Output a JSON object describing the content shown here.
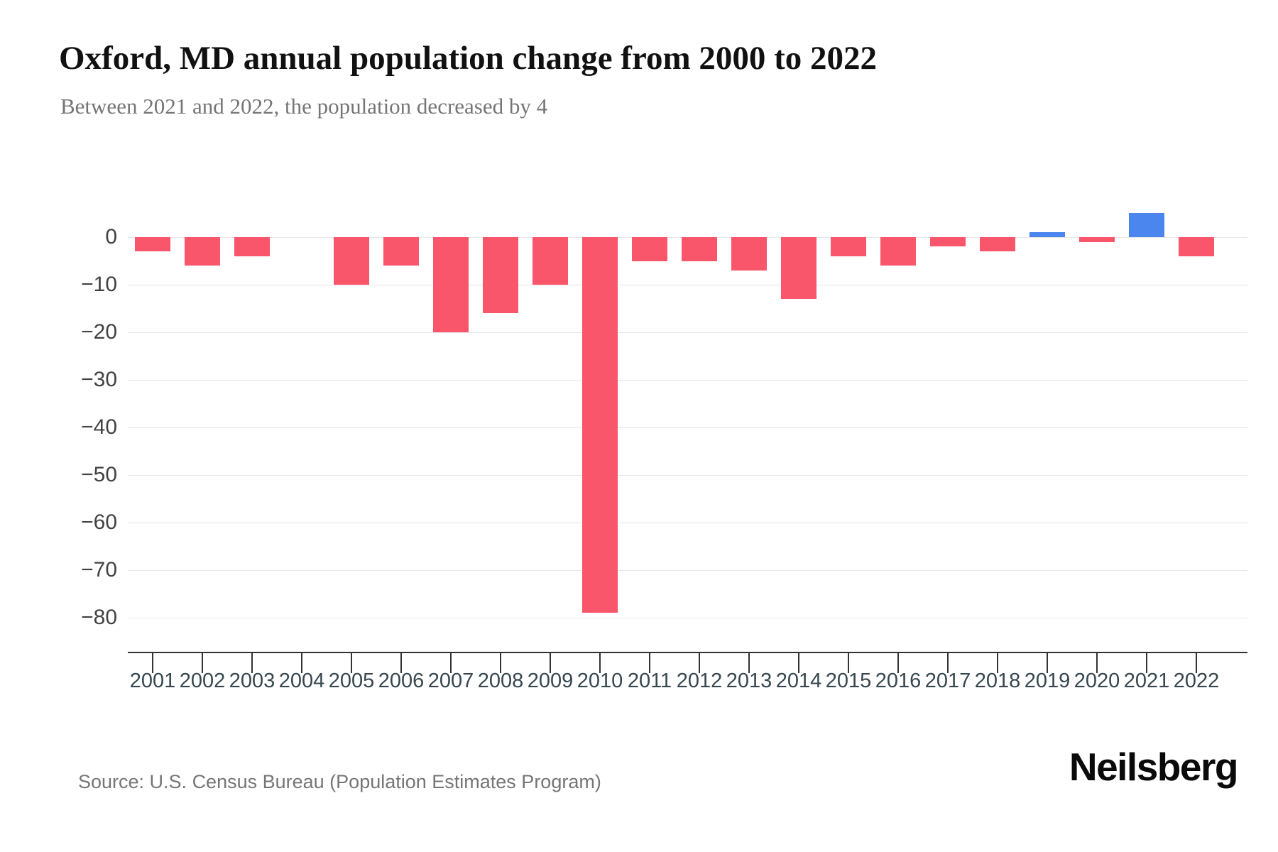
{
  "header": {
    "title": "Oxford, MD annual population change from 2000 to 2022",
    "subtitle": "Between 2021 and 2022, the population decreased by 4"
  },
  "footer": {
    "source": "Source: U.S. Census Bureau (Population Estimates Program)",
    "brand": "Neilsberg"
  },
  "colors": {
    "negative_bar": "#F9556B",
    "positive_bar": "#4A86EE",
    "gridline": "#E6E6E6",
    "axis": "#333333",
    "tick_label": "#37474F",
    "subtitle_text": "#757575"
  },
  "chart_data": {
    "type": "bar",
    "title": "Oxford, MD annual population change from 2000 to 2022",
    "subtitle": "Between 2021 and 2022, the population decreased by 4",
    "xlabel": "",
    "ylabel": "",
    "categories": [
      "2001",
      "2002",
      "2003",
      "2004",
      "2005",
      "2006",
      "2007",
      "2008",
      "2009",
      "2010",
      "2011",
      "2012",
      "2013",
      "2014",
      "2015",
      "2016",
      "2017",
      "2018",
      "2019",
      "2020",
      "2021",
      "2022"
    ],
    "values": [
      -3,
      -6,
      -4,
      0,
      -10,
      -6,
      -20,
      -16,
      -10,
      -79,
      -5,
      -5,
      -7,
      -13,
      -4,
      -6,
      -2,
      -3,
      1,
      -1,
      5,
      -4
    ],
    "yticks": [
      0,
      -10,
      -20,
      -30,
      -40,
      -50,
      -60,
      -70,
      -80
    ],
    "ytick_labels": [
      "0",
      "−10",
      "−20",
      "−30",
      "−40",
      "−50",
      "−60",
      "−70",
      "−80"
    ],
    "ylim": [
      -87,
      8
    ],
    "grid": true,
    "legend": false,
    "bar_colors_rule": "negative=#F9556B, positive=#4A86EE"
  }
}
